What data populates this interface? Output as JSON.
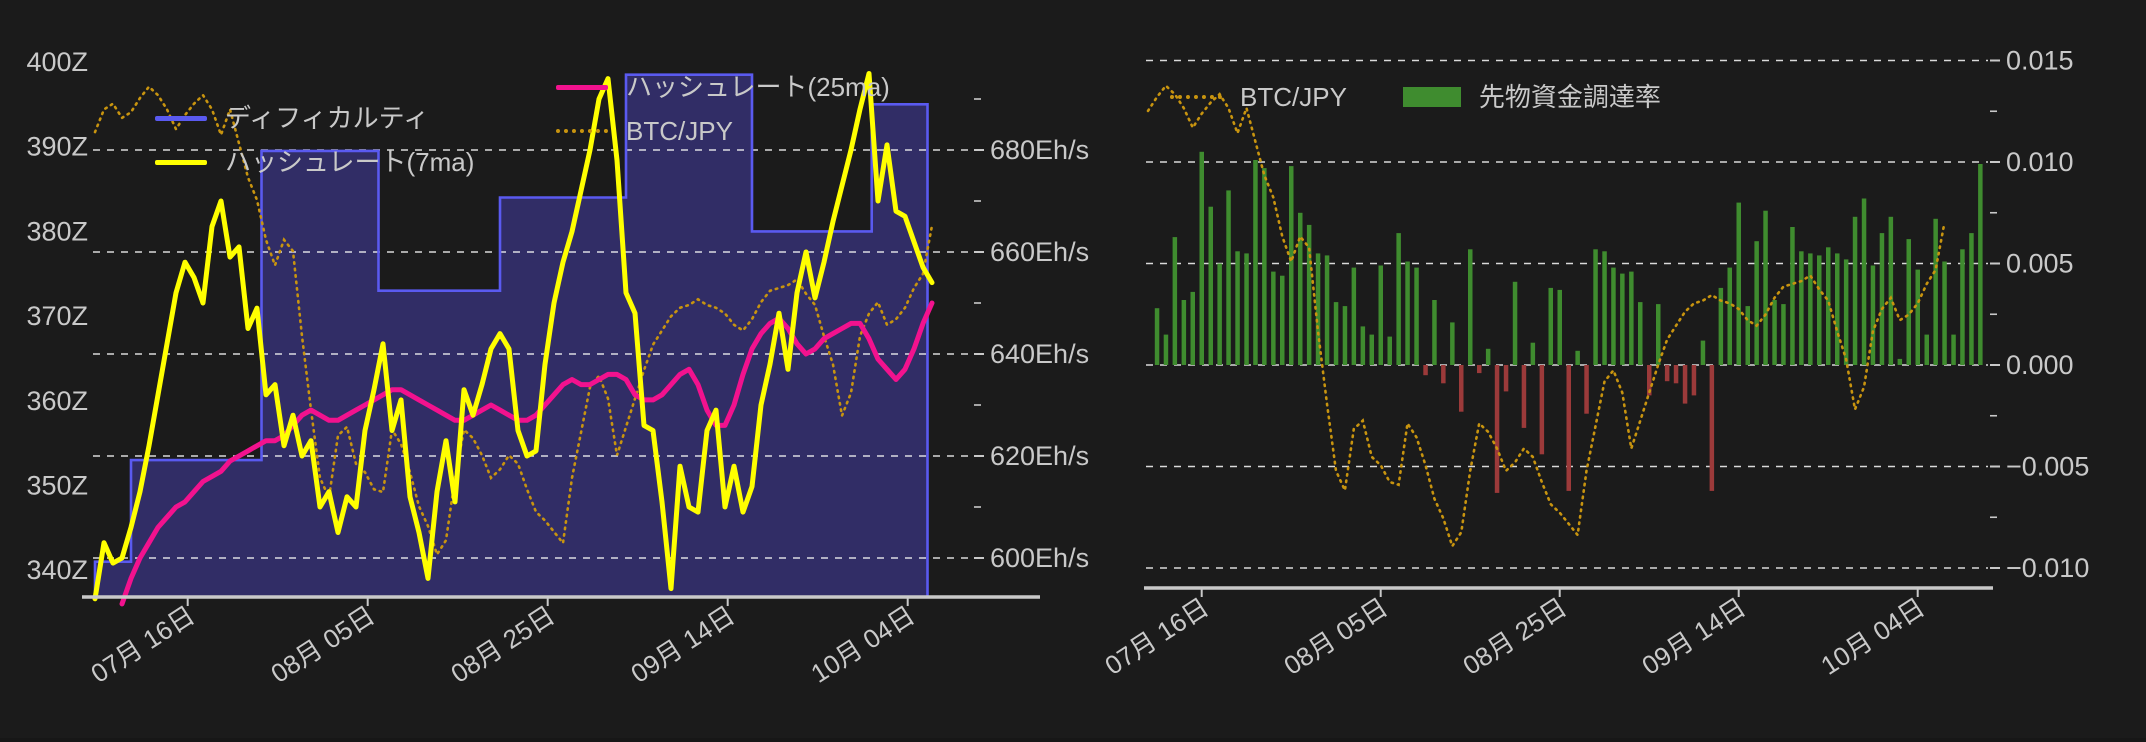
{
  "colors": {
    "background": "#1b1b1b",
    "text": "#c9c9c9",
    "grid": "#f2f2f2",
    "axis": "#c9c9c9",
    "difficulty_line": "#5a5af0",
    "difficulty_fill": "#312d66",
    "hashrate7_line": "#ffff00",
    "hashrate25_line": "#f2128e",
    "btcjpy_line": "#c8940f",
    "funding_positive": "#3f8c2f",
    "funding_negative": "#9c3а3a_fix"
  },
  "chart_data": [
    {
      "type": "line",
      "title": "",
      "x_tick_labels": [
        "07月 16日",
        "08月 05日",
        "08月 25日",
        "09月 14日",
        "10月 04日"
      ],
      "x_tick_days": [
        10.3,
        30.3,
        50.3,
        70.3,
        90.3
      ],
      "days_start": 0,
      "days_end": 93,
      "grid": true,
      "legend_position": "upper-left, two columns, no frame",
      "left_axis": {
        "tick_labels": [
          "400Z",
          "390Z",
          "380Z",
          "370Z",
          "360Z",
          "350Z",
          "340Z"
        ],
        "tick_values": [
          400,
          390,
          380,
          370,
          360,
          350,
          340
        ],
        "ylim": [
          336.8,
          403.8
        ]
      },
      "right_axis": {
        "tick_labels": [
          "680Eh/s",
          "660Eh/s",
          "640Eh/s",
          "620Eh/s",
          "600Eh/s"
        ],
        "tick_values": [
          680,
          660,
          640,
          620,
          600
        ],
        "minor_tick_values": [
          690,
          670,
          650,
          630,
          610
        ],
        "ylim": [
          592.4,
          703.5
        ]
      },
      "series": [
        {
          "name": "ディフィカルティ",
          "type": "step-area",
          "axis": "left",
          "color": "#5a5af0",
          "fill": "#312d66",
          "unit": "Z",
          "breakpoints": [
            [
              0,
              341
            ],
            [
              4,
              353
            ],
            [
              18.5,
              389.5
            ],
            [
              31.5,
              373
            ],
            [
              45,
              384
            ],
            [
              59,
              398.5
            ],
            [
              73,
              380
            ],
            [
              86.3,
              395
            ]
          ],
          "end_day": 92.5
        },
        {
          "name": "ハッシュレート(7ma)",
          "type": "line",
          "axis": "right",
          "color": "#ffff00",
          "unit": "Eh/s",
          "values": [
            592,
            603,
            599,
            600,
            606,
            613,
            622,
            632,
            642,
            652,
            658,
            655,
            650,
            665,
            670,
            659,
            661,
            645,
            649,
            632,
            634,
            622,
            628,
            620,
            623,
            610,
            613,
            605,
            612,
            610,
            625,
            633,
            642,
            625,
            631,
            612,
            605,
            596,
            613,
            623,
            611,
            633,
            628,
            634,
            641,
            644,
            641,
            625,
            620,
            621,
            638,
            650,
            658,
            664,
            672,
            680,
            690,
            694,
            678,
            652,
            648,
            626,
            625,
            611,
            594,
            618,
            610,
            609,
            625,
            629,
            610,
            618,
            609,
            614,
            630,
            638,
            648,
            637,
            652,
            660,
            651,
            658,
            666,
            673,
            680,
            688,
            695,
            670,
            681,
            668,
            667,
            662,
            657,
            654
          ]
        },
        {
          "name": "ハッシュレート(25ma)",
          "type": "line",
          "axis": "right",
          "color": "#f2128e",
          "unit": "Eh/s",
          "values": [
            null,
            null,
            null,
            591,
            596,
            600,
            603,
            606,
            608,
            610,
            611,
            613,
            615,
            616,
            617,
            619,
            620,
            621,
            622,
            623,
            623,
            624,
            626,
            628,
            629,
            628,
            627,
            627,
            628,
            629,
            630,
            631,
            632,
            633,
            633,
            632,
            631,
            630,
            629,
            628,
            627,
            627,
            628,
            629,
            630,
            629,
            628,
            627,
            627,
            628,
            630,
            632,
            634,
            635,
            634,
            634,
            635,
            636,
            636,
            635,
            632,
            631,
            631,
            632,
            634,
            636,
            637,
            634,
            629,
            626,
            626,
            630,
            636,
            641,
            644,
            646,
            647,
            645,
            642,
            640,
            641,
            643,
            644,
            645,
            646,
            646,
            643,
            639,
            637,
            635,
            637,
            641,
            646,
            650
          ]
        },
        {
          "name": "BTC/JPY",
          "type": "dotted-line",
          "axis": "hidden",
          "color": "#c8940f",
          "note": "price axis not shown; values normalized 0-1 of plot height",
          "values_norm": [
            0.82,
            0.86,
            0.87,
            0.845,
            0.855,
            0.88,
            0.9,
            0.885,
            0.86,
            0.825,
            0.85,
            0.87,
            0.885,
            0.86,
            0.815,
            0.86,
            0.8,
            0.74,
            0.7,
            0.63,
            0.585,
            0.63,
            0.61,
            0.46,
            0.33,
            0.21,
            0.175,
            0.285,
            0.3,
            0.235,
            0.22,
            0.19,
            0.185,
            0.295,
            0.27,
            0.22,
            0.16,
            0.125,
            0.075,
            0.1,
            0.21,
            0.295,
            0.28,
            0.25,
            0.21,
            0.225,
            0.25,
            0.235,
            0.19,
            0.15,
            0.135,
            0.115,
            0.095,
            0.21,
            0.29,
            0.37,
            0.39,
            0.35,
            0.25,
            0.3,
            0.35,
            0.4,
            0.445,
            0.47,
            0.495,
            0.51,
            0.515,
            0.525,
            0.515,
            0.51,
            0.5,
            0.48,
            0.47,
            0.49,
            0.52,
            0.54,
            0.545,
            0.55,
            0.56,
            0.535,
            0.515,
            0.46,
            0.41,
            0.32,
            0.36,
            0.46,
            0.5,
            0.52,
            0.48,
            0.49,
            0.51,
            0.545,
            0.57,
            0.655
          ]
        }
      ]
    },
    {
      "type": "bar",
      "title": "",
      "x_tick_labels": [
        "07月 16日",
        "08月 05日",
        "08月 25日",
        "09月 14日",
        "10月 04日"
      ],
      "x_tick_days": [
        10,
        30,
        50,
        70,
        90
      ],
      "grid": true,
      "legend_position": "upper-left, single row, no frame",
      "right_axis": {
        "tick_labels": [
          "0.015",
          "0.010",
          "0.005",
          "0.000",
          "−0.005",
          "−0.010"
        ],
        "tick_values": [
          0.015,
          0.01,
          0.005,
          0.0,
          -0.005,
          -0.01
        ],
        "minor_tick_values": [
          0.0125,
          0.0075,
          0.0025,
          -0.0025,
          -0.0075
        ],
        "ylim": [
          -0.011,
          0.0165
        ]
      },
      "series": [
        {
          "name": "BTC/JPY",
          "type": "dotted-line",
          "color": "#c8940f",
          "note": "same normalized BTC/JPY shape as left chart",
          "start_day": 4,
          "values_norm": [
            0.855,
            0.88,
            0.9,
            0.885,
            0.86,
            0.825,
            0.85,
            0.87,
            0.885,
            0.86,
            0.815,
            0.86,
            0.8,
            0.74,
            0.7,
            0.63,
            0.585,
            0.63,
            0.61,
            0.46,
            0.33,
            0.21,
            0.175,
            0.285,
            0.3,
            0.235,
            0.22,
            0.19,
            0.185,
            0.295,
            0.27,
            0.22,
            0.16,
            0.125,
            0.075,
            0.1,
            0.21,
            0.295,
            0.28,
            0.25,
            0.21,
            0.225,
            0.25,
            0.235,
            0.19,
            0.15,
            0.135,
            0.115,
            0.095,
            0.21,
            0.29,
            0.37,
            0.39,
            0.35,
            0.25,
            0.3,
            0.35,
            0.4,
            0.445,
            0.47,
            0.495,
            0.51,
            0.515,
            0.525,
            0.515,
            0.51,
            0.5,
            0.48,
            0.47,
            0.49,
            0.52,
            0.54,
            0.545,
            0.55,
            0.56,
            0.535,
            0.515,
            0.46,
            0.41,
            0.32,
            0.36,
            0.46,
            0.5,
            0.52,
            0.48,
            0.49,
            0.51,
            0.545,
            0.57,
            0.655
          ]
        },
        {
          "name": "先物資金調達率",
          "type": "bar",
          "color_positive": "#3f8c2f",
          "color_negative": "#9c3a3a",
          "start_day": 5,
          "values": [
            0.0028,
            0.0015,
            0.0063,
            0.0032,
            0.0036,
            0.0105,
            0.0078,
            0.005,
            0.0086,
            0.0056,
            0.0055,
            0.0101,
            0.0097,
            0.0046,
            0.0044,
            0.0098,
            0.0075,
            0.0069,
            0.0055,
            0.0054,
            0.0031,
            0.0029,
            0.0048,
            0.0019,
            0.0015,
            0.0049,
            0.0014,
            0.0065,
            0.0051,
            0.0048,
            -0.0005,
            0.0032,
            -0.0009,
            0.0021,
            -0.0023,
            0.0057,
            -0.0004,
            0.0008,
            -0.0063,
            -0.0013,
            0.0041,
            -0.0031,
            0.0011,
            -0.0044,
            0.0038,
            0.0037,
            -0.0062,
            0.0007,
            -0.0024,
            0.0057,
            0.0056,
            0.0048,
            0.0045,
            0.0046,
            0.0031,
            -0.0015,
            0.003,
            -0.0008,
            -0.0009,
            -0.0019,
            -0.0015,
            0.0012,
            -0.0062,
            0.0038,
            0.0048,
            0.008,
            0.0029,
            0.0061,
            0.0076,
            0.0032,
            0.003,
            0.0068,
            0.0056,
            0.0055,
            0.0054,
            0.0058,
            0.0055,
            0.0052,
            0.0073,
            0.0082,
            0.0049,
            0.0065,
            0.0073,
            0.0003,
            0.0062,
            0.0047,
            0.0015,
            0.0072,
            0.0051,
            0.0015,
            0.0057,
            0.0065,
            0.0099
          ]
        }
      ]
    }
  ]
}
